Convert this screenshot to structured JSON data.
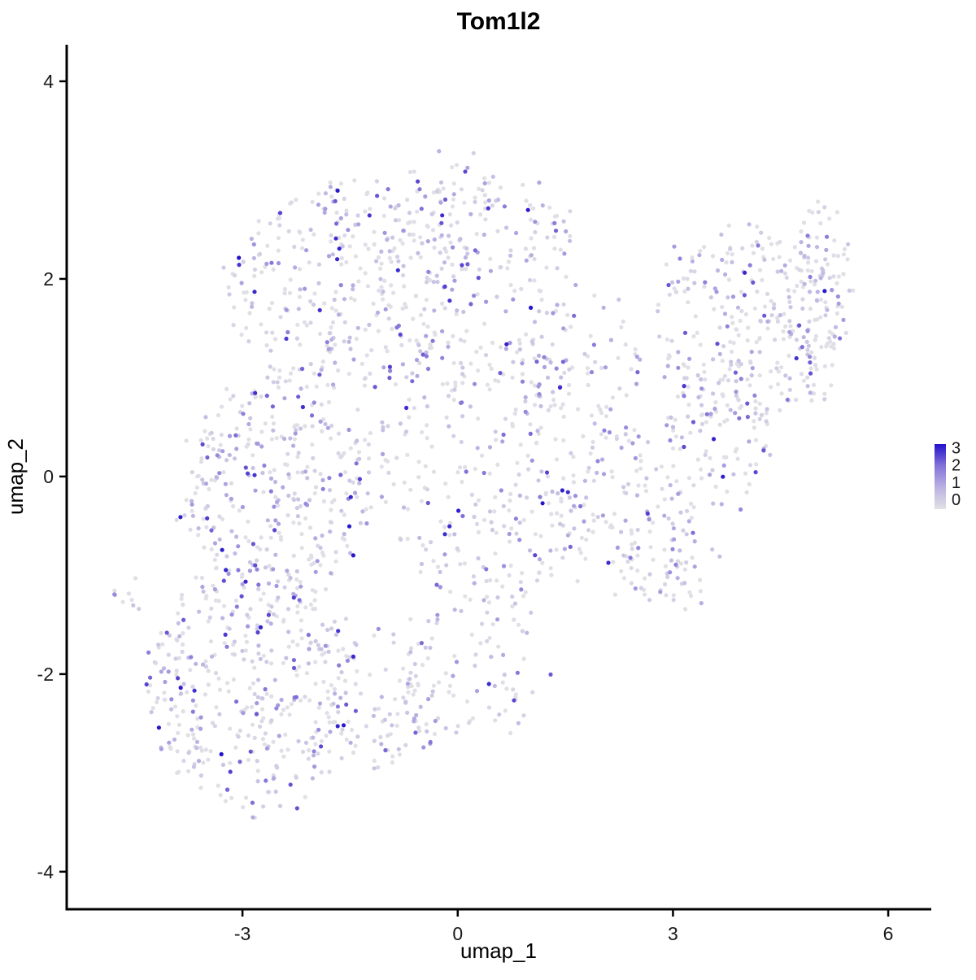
{
  "title": "Tom1l2",
  "axes": {
    "x": {
      "label": "umap_1",
      "ticks": [
        {
          "value": -3,
          "label": "-3"
        },
        {
          "value": 0,
          "label": "0"
        },
        {
          "value": 3,
          "label": "3"
        },
        {
          "value": 6,
          "label": "6"
        }
      ]
    },
    "y": {
      "label": "umap_2",
      "ticks": [
        {
          "value": 4,
          "label": "4"
        },
        {
          "value": 2,
          "label": "2"
        },
        {
          "value": 0,
          "label": "0"
        },
        {
          "value": -2,
          "label": "-2"
        },
        {
          "value": -4,
          "label": "-4"
        }
      ]
    }
  },
  "legend": {
    "entries": [
      {
        "value": 3,
        "label": "3"
      },
      {
        "value": 2,
        "label": "2"
      },
      {
        "value": 1,
        "label": "1"
      },
      {
        "value": 0,
        "label": "0"
      }
    ],
    "color_stops": [
      {
        "value": 0,
        "color": "#E1E0E6"
      },
      {
        "value": 1,
        "color": "#BCB2E2"
      },
      {
        "value": 2,
        "color": "#8273D8"
      },
      {
        "value": 3,
        "color": "#2412CB"
      }
    ]
  },
  "chart_data": {
    "type": "scatter",
    "title": "Tom1l2",
    "xlabel": "umap_1",
    "ylabel": "umap_2",
    "xlim": [
      -5.45,
      6.6
    ],
    "ylim": [
      -4.38,
      4.37
    ],
    "grid": false,
    "legend_position": "right",
    "colorbar": {
      "min": 0,
      "max": 3,
      "low_color": "lightgrey",
      "high_color": "blue"
    },
    "point_radius_px": 2.6,
    "n_points_estimate": 2400,
    "seed": 42,
    "clusters": [
      {
        "cx": -2.9,
        "cy": -2.1,
        "rx": 1.45,
        "ry": 1.25,
        "n": 400
      },
      {
        "cx": -2.5,
        "cy": -0.1,
        "rx": 1.35,
        "ry": 1.15,
        "n": 330
      },
      {
        "cx": -1.5,
        "cy": 1.9,
        "rx": 1.75,
        "ry": 1.05,
        "n": 350
      },
      {
        "cx": -0.3,
        "cy": 2.75,
        "rx": 1.0,
        "ry": 0.45,
        "n": 70
      },
      {
        "cx": 0.35,
        "cy": 0.1,
        "rx": 1.5,
        "ry": 1.45,
        "n": 280
      },
      {
        "cx": 0.7,
        "cy": 2.35,
        "rx": 0.95,
        "ry": 0.55,
        "n": 80
      },
      {
        "cx": 1.6,
        "cy": 1.1,
        "rx": 0.9,
        "ry": 0.8,
        "n": 90
      },
      {
        "cx": 2.3,
        "cy": -0.3,
        "rx": 1.0,
        "ry": 0.85,
        "n": 120
      },
      {
        "cx": 2.95,
        "cy": -0.85,
        "rx": 0.7,
        "ry": 0.5,
        "n": 50
      },
      {
        "cx": 4.1,
        "cy": 1.5,
        "rx": 1.35,
        "ry": 1.05,
        "n": 280
      },
      {
        "cx": 5.0,
        "cy": 1.9,
        "rx": 0.55,
        "ry": 0.85,
        "n": 90
      },
      {
        "cx": 3.6,
        "cy": 0.3,
        "rx": 0.8,
        "ry": 0.7,
        "n": 80
      },
      {
        "cx": -4.65,
        "cy": -1.25,
        "rx": 0.13,
        "ry": 0.18,
        "n": 9
      },
      {
        "cx": 0.2,
        "cy": -1.9,
        "rx": 1.0,
        "ry": 0.8,
        "n": 90
      },
      {
        "cx": -1.1,
        "cy": -2.3,
        "rx": 0.8,
        "ry": 0.7,
        "n": 90
      }
    ],
    "expression_bins": [
      {
        "p": 0.44,
        "min": 0.0,
        "max": 0.04
      },
      {
        "p": 0.26,
        "min": 0.04,
        "max": 0.7
      },
      {
        "p": 0.19,
        "min": 0.7,
        "max": 1.5
      },
      {
        "p": 0.08,
        "min": 1.5,
        "max": 2.3
      },
      {
        "p": 0.03,
        "min": 2.3,
        "max": 3.0
      }
    ]
  }
}
